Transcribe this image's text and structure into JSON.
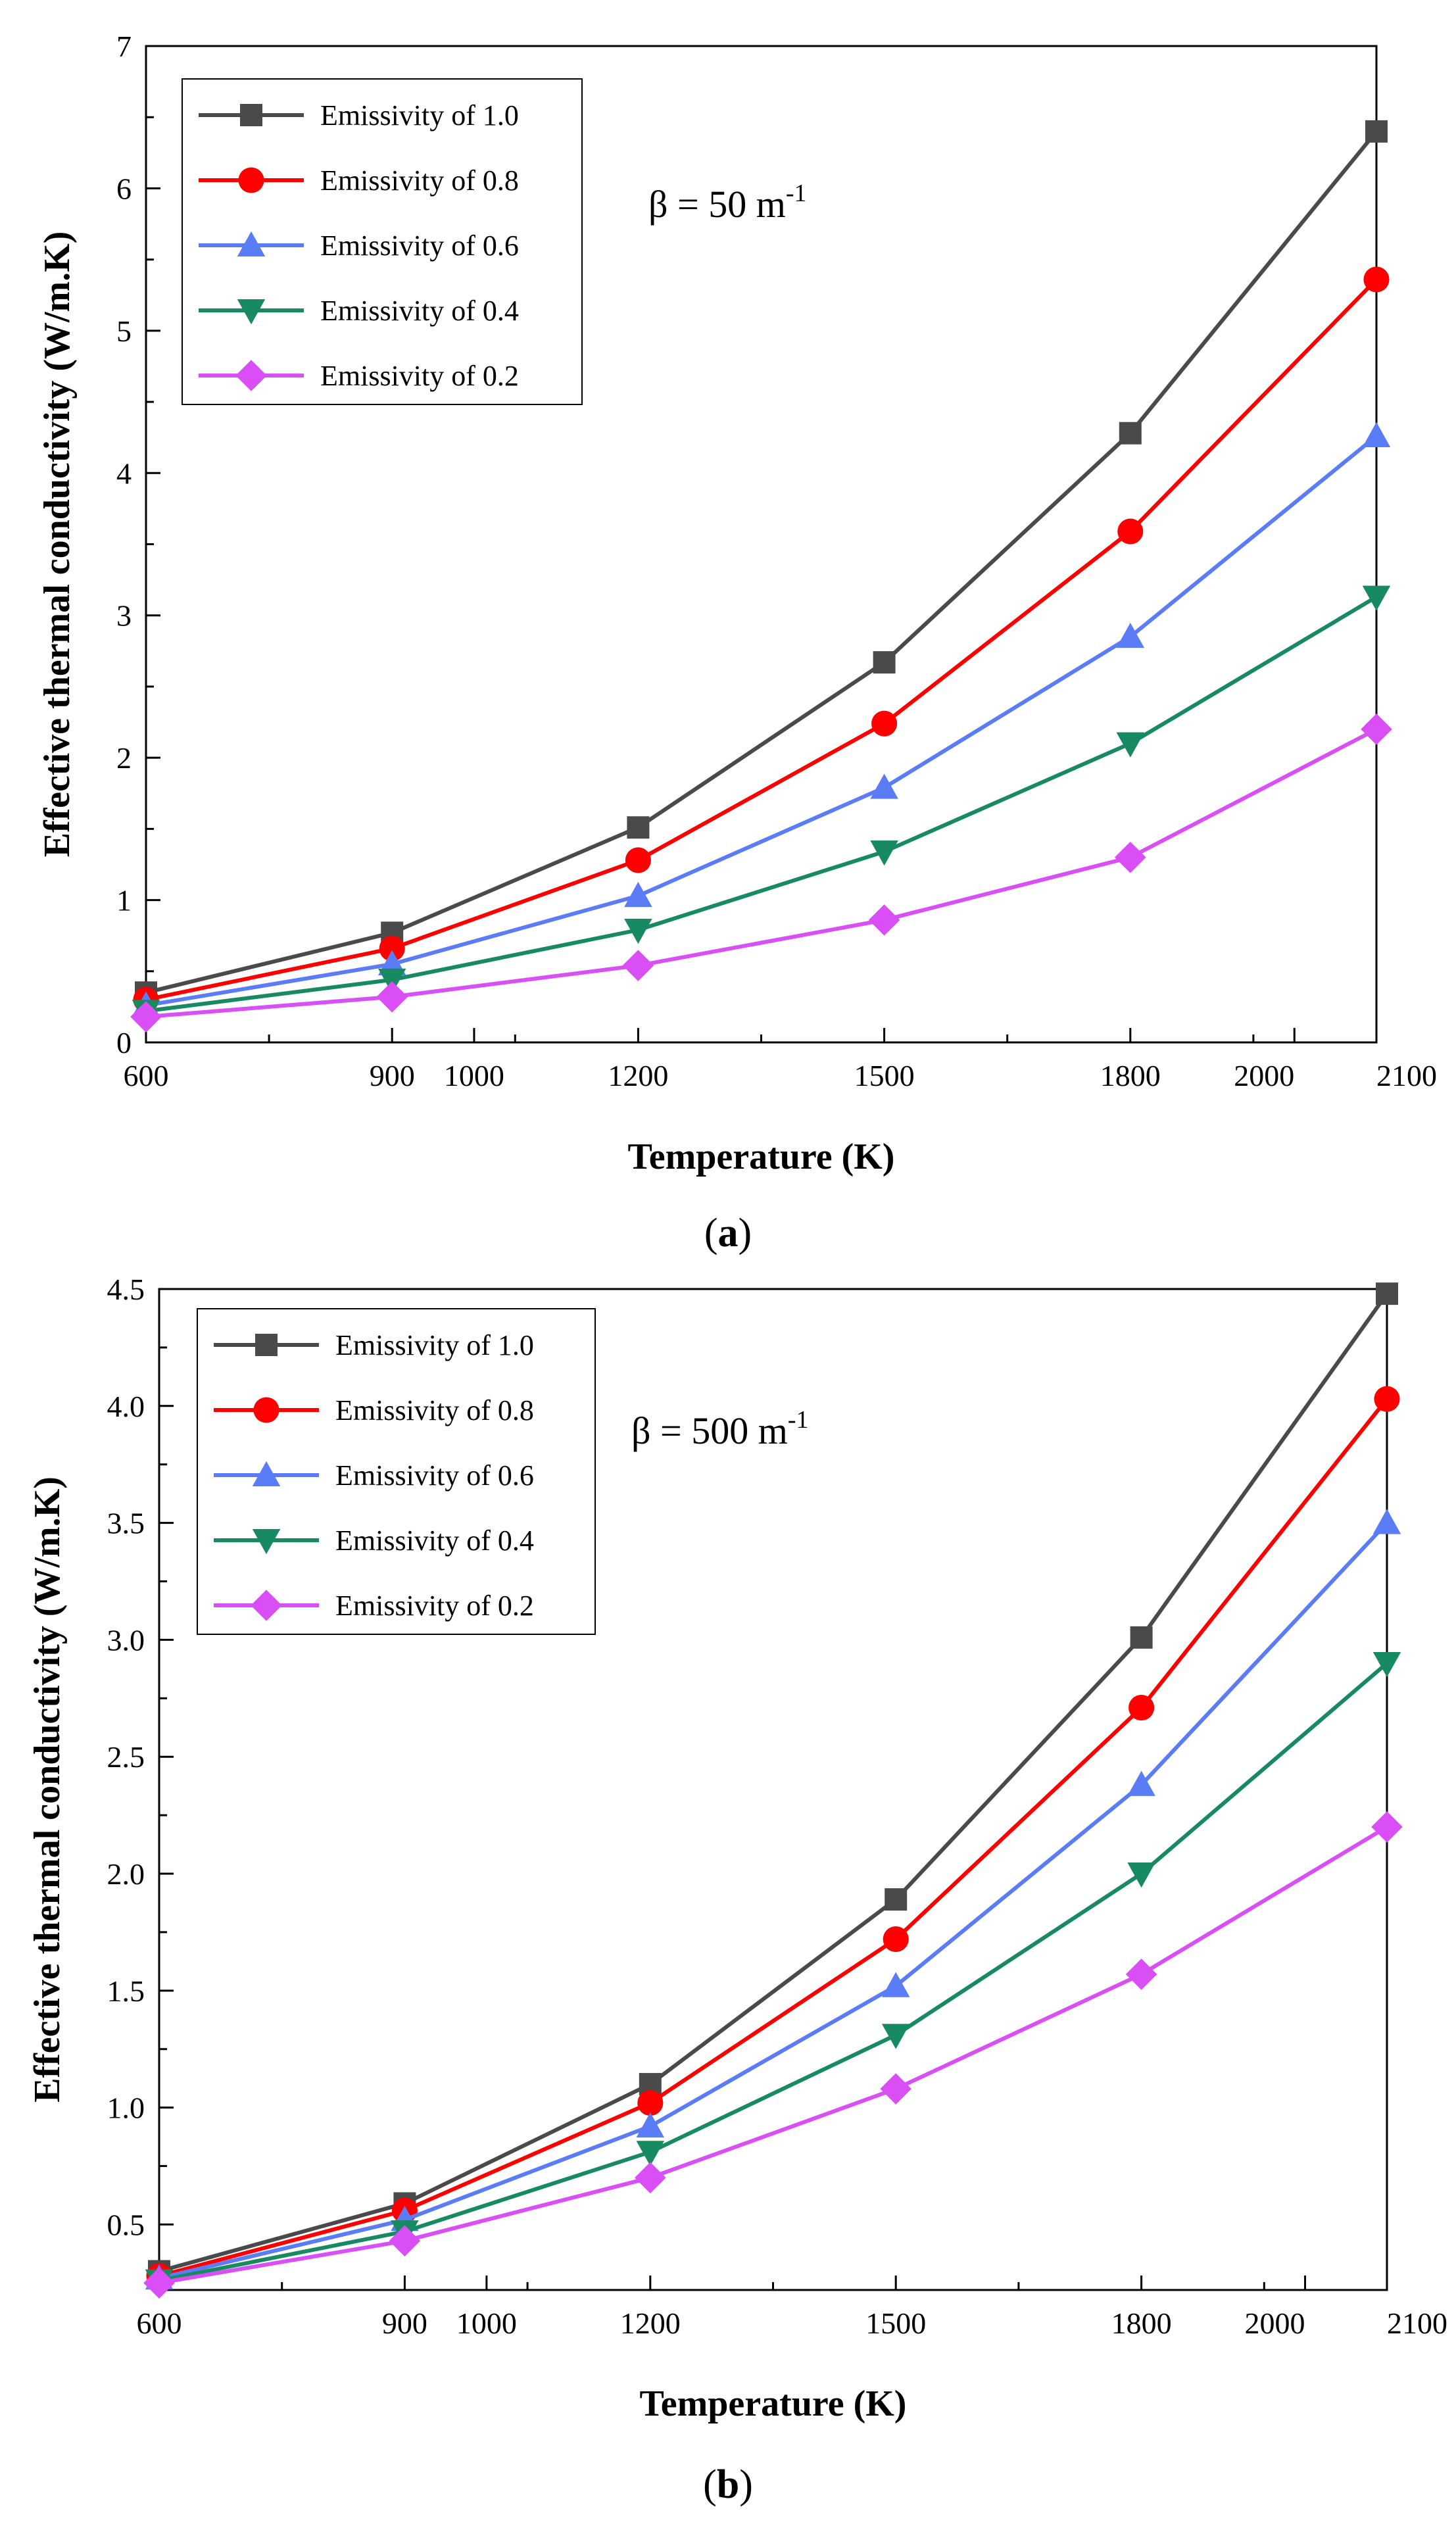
{
  "chart_data": [
    {
      "type": "line",
      "panel": "(a)",
      "panel_prefix": "(",
      "panel_letter": "a",
      "panel_suffix": ")",
      "annotation": {
        "base": "β = 50 m",
        "sup": "-1"
      },
      "xlabel": "Temperature (K)",
      "ylabel": "Effective thermal conductivity (W/m.K)",
      "xlim": [
        600,
        2100
      ],
      "ylim": [
        0,
        7
      ],
      "xticks": [
        600,
        900,
        1000,
        1200,
        1500,
        1800,
        2000,
        2100
      ],
      "yticks": [
        "0",
        "1",
        "2",
        "3",
        "4",
        "5",
        "6",
        "7"
      ],
      "x": [
        600,
        900,
        1200,
        1500,
        1800,
        2100
      ],
      "legend_position": "top-left",
      "series": [
        {
          "name": "Emissivity of 1.0",
          "color": "#4a4a4a",
          "marker": "square",
          "values": [
            0.35,
            0.77,
            1.51,
            2.67,
            4.28,
            6.4
          ]
        },
        {
          "name": "Emissivity of 0.8",
          "color": "#ff0000",
          "marker": "circle",
          "values": [
            0.3,
            0.66,
            1.28,
            2.24,
            3.59,
            5.36
          ]
        },
        {
          "name": "Emissivity of 0.6",
          "color": "#5b7cf7",
          "marker": "triangle-up",
          "values": [
            0.26,
            0.55,
            1.03,
            1.79,
            2.85,
            4.26
          ]
        },
        {
          "name": "Emissivity of 0.4",
          "color": "#188a62",
          "marker": "triangle-down",
          "values": [
            0.22,
            0.44,
            0.79,
            1.34,
            2.1,
            3.13
          ]
        },
        {
          "name": "Emissivity of 0.2",
          "color": "#d94ff5",
          "marker": "diamond",
          "values": [
            0.18,
            0.32,
            0.54,
            0.86,
            1.3,
            2.2
          ]
        }
      ]
    },
    {
      "type": "line",
      "panel": "(b)",
      "panel_prefix": "(",
      "panel_letter": "b",
      "panel_suffix": ")",
      "annotation": {
        "base": "β = 500 m",
        "sup": "-1"
      },
      "xlabel": "Temperature (K)",
      "ylabel": "Effective thermal conductivity (W/m.K)",
      "xlim": [
        600,
        2100
      ],
      "ylim": [
        0.22,
        4.5
      ],
      "xticks": [
        600,
        900,
        1000,
        1200,
        1500,
        1800,
        2000,
        2100
      ],
      "yticks": [
        "0.5",
        "1.0",
        "1.5",
        "2.0",
        "2.5",
        "3.0",
        "3.5",
        "4.0",
        "4.5"
      ],
      "x": [
        600,
        900,
        1200,
        1500,
        1800,
        2100
      ],
      "legend_position": "top-left",
      "series": [
        {
          "name": "Emissivity of 1.0",
          "color": "#4a4a4a",
          "marker": "square",
          "values": [
            0.3,
            0.59,
            1.1,
            1.89,
            3.01,
            4.48
          ]
        },
        {
          "name": "Emissivity of 0.8",
          "color": "#ff0000",
          "marker": "circle",
          "values": [
            0.28,
            0.56,
            1.02,
            1.72,
            2.71,
            4.03
          ]
        },
        {
          "name": "Emissivity of 0.6",
          "color": "#5b7cf7",
          "marker": "triangle-up",
          "values": [
            0.27,
            0.52,
            0.92,
            1.52,
            2.38,
            3.5
          ]
        },
        {
          "name": "Emissivity of 0.4",
          "color": "#188a62",
          "marker": "triangle-down",
          "values": [
            0.26,
            0.47,
            0.81,
            1.31,
            2.0,
            2.9
          ]
        },
        {
          "name": "Emissivity of 0.2",
          "color": "#d94ff5",
          "marker": "diamond",
          "values": [
            0.25,
            0.43,
            0.7,
            1.08,
            1.57,
            2.2
          ]
        }
      ]
    }
  ]
}
